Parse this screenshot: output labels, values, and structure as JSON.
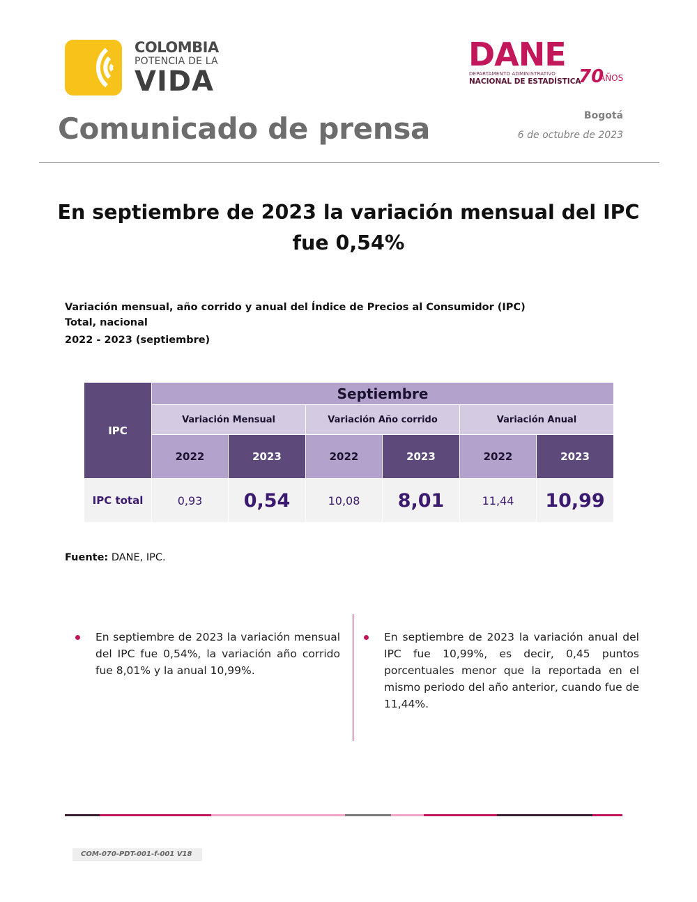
{
  "logos": {
    "colombia": {
      "line1": "COLOMBIA",
      "line2": "POTENCIA DE LA",
      "line3": "VIDA",
      "color": "#f7c31b"
    },
    "dane": {
      "name": "DANE",
      "line1": "DEPARTAMENTO ADMINISTRATIVO",
      "line2": "NACIONAL DE ESTADÍSTICA",
      "years": "70",
      "years_label": "AÑOS",
      "color": "#c2185b"
    }
  },
  "header": {
    "title": "Comunicado de prensa",
    "city": "Bogotá",
    "date": "6 de octubre de 2023"
  },
  "headline": {
    "line1": "En septiembre de 2023 la variación mensual del IPC",
    "line2": "fue 0,54%"
  },
  "table_caption": {
    "line1": "Variación mensual, año corrido y anual del Índice de Precios al Consumidor (IPC)",
    "line2": "Total, nacional",
    "line3": "2022 - 2023 (septiembre)"
  },
  "table": {
    "ipc_header": "IPC",
    "month_header": "Septiembre",
    "groups": [
      "Variación Mensual",
      "Variación Año corrido",
      "Variación Anual"
    ],
    "years": [
      "2022",
      "2023",
      "2022",
      "2023",
      "2022",
      "2023"
    ],
    "row_label": "IPC total",
    "values": [
      "0,93",
      "0,54",
      "10,08",
      "8,01",
      "11,44",
      "10,99"
    ]
  },
  "source": {
    "label": "Fuente:",
    "text": "DANE, IPC."
  },
  "bullets": [
    "En septiembre de 2023 la variación mensual del IPC fue 0,54%, la variación año corrido fue 8,01% y la anual 10,99%.",
    "En septiembre de 2023 la variación anual del IPC fue 10,99%, es decir, 0,45 puntos porcentuales menor que la reportada en el mismo periodo del año anterior, cuando fue de 11,44%."
  ],
  "footer": {
    "code": "COM-070-PDT-001-f-001 V18"
  },
  "colors": {
    "accent": "#c2185b",
    "table_dark": "#5d4a7b",
    "table_light": "#b3a3cc"
  }
}
